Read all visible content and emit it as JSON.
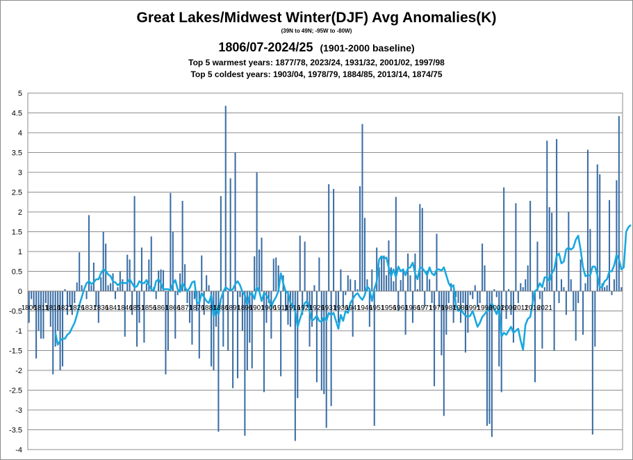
{
  "chart_data": {
    "type": "bar",
    "title": "Great Lakes/Midwest Winter(DJF) Avg Anomalies(K)",
    "subtitle": "(39N to 49N; -95W to -80W)",
    "period": "1806/07-2024/25",
    "baseline": "(1901-2000 baseline)",
    "warmest": "Top 5 warmest years: 1877/78,  2023/24,  1931/32,  2001/02,  1997/98",
    "coldest": "Top 5 coldest years: 1903/04,  1978/79,  1884/85,  2013/14,  1874/75",
    "xlabel": "",
    "ylabel": "",
    "ylim": [
      -4,
      5
    ],
    "yticks": [
      "5",
      "4.5",
      "4",
      "3.5",
      "3",
      "2.5",
      "2",
      "1.5",
      "1",
      "0.5",
      "0",
      "-0.5",
      "-1",
      "-1.5",
      "-2",
      "-2.5",
      "-3",
      "-3.5",
      "-4"
    ],
    "first_year": 1806,
    "xtick_labels": [
      "1806",
      "1811",
      "1816",
      "1821",
      "1826",
      "1831",
      "1836",
      "1841",
      "1846",
      "1851",
      "1856",
      "1861",
      "1866",
      "1871",
      "1876",
      "1881",
      "1886",
      "1891",
      "1896",
      "1901",
      "1906",
      "1911",
      "1916",
      "1921",
      "1926",
      "1931",
      "1936",
      "1941",
      "1946",
      "1951",
      "1956",
      "1961",
      "1966",
      "1971",
      "1976",
      "1981",
      "1986",
      "1991",
      "1996",
      "2001",
      "2006",
      "2011",
      "2016",
      "2021"
    ],
    "bar_color": "#3a6ea5",
    "line_color": "#19a8e0",
    "grid": true,
    "series": [
      {
        "kind": "bar",
        "values": [
          -0.8,
          -0.2,
          -0.4,
          -1.7,
          -1.0,
          -1.2,
          -1.2,
          -0.3,
          -0.5,
          -0.9,
          -2.1,
          -1.4,
          -1.0,
          -2.0,
          -1.9,
          0.05,
          -0.6,
          -0.4,
          -0.6,
          -0.3,
          0.22,
          0.98,
          0.15,
          0.05,
          -0.2,
          1.92,
          0.15,
          0.72,
          -0.4,
          -0.8,
          0.35,
          1.5,
          1.2,
          0.15,
          0.2,
          0.45,
          -0.2,
          0.1,
          0.5,
          0.3,
          -1.15,
          0.92,
          0.8,
          -0.6,
          2.4,
          -1.4,
          -0.8,
          1.1,
          -1.3,
          0.2,
          0.8,
          1.38,
          0.1,
          -0.2,
          0.52,
          0.55,
          0.53,
          -2.1,
          -1.5,
          2.48,
          1.5,
          -1.2,
          -0.1,
          0.45,
          2.28,
          0.68,
          -0.3,
          -0.8,
          -1.35,
          -0.2,
          -0.5,
          -1.7,
          0.9,
          -0.6,
          0.4,
          0.15,
          -1.9,
          -2.0,
          -0.9,
          -3.55,
          2.4,
          -1.4,
          4.68,
          -1.5,
          2.85,
          -2.45,
          3.5,
          -2.2,
          -0.15,
          -1.0,
          -3.65,
          -2.0,
          -1.3,
          -1.95,
          0.88,
          3.0,
          1.05,
          1.35,
          -2.55,
          -0.8,
          -0.3,
          -1.2,
          0.82,
          0.85,
          0.65,
          -2.15,
          0.4,
          -0.5,
          -0.85,
          -0.9,
          -0.4,
          -3.78,
          -2.7,
          1.4,
          -0.6,
          1.25,
          -0.4,
          -1.4,
          -0.9,
          0.15,
          -2.3,
          0.85,
          -2.5,
          -2.6,
          -3.45,
          2.7,
          -2.9,
          2.58,
          -0.5,
          -0.8,
          0.55,
          -0.4,
          -0.1,
          0.4,
          0.3,
          -1.15,
          0.28,
          0.05,
          2.65,
          4.22,
          1.85,
          0.3,
          -0.9,
          0.55,
          -3.4,
          1.1,
          0.6,
          0.85,
          0.9,
          0.4,
          1.28,
          0.6,
          0.25,
          2.38,
          -0.5,
          0.28,
          0.5,
          -1.1,
          0.95,
          0.4,
          -0.8,
          0.95,
          0.05,
          2.2,
          2.1,
          -0.4,
          0.52,
          0.3,
          -0.3,
          -2.4,
          1.45,
          -0.4,
          -1.62,
          -3.15,
          -1.1,
          -0.3,
          0.2,
          -0.8,
          -0.15,
          -0.3,
          -0.8,
          -0.3,
          -1.55,
          -1.05,
          -0.1,
          -0.2,
          0.15,
          -0.4,
          -0.3,
          1.2,
          0.65,
          -3.4,
          -3.35,
          -3.68,
          0.05,
          -0.15,
          -1.9,
          -2.55,
          2.62,
          -0.7,
          0.05,
          -0.6,
          -1.3,
          2.22,
          -0.3,
          0.2,
          0.1,
          0.3,
          0.65,
          2.28,
          -0.35,
          -2.3,
          1.25,
          -0.2,
          -1.45,
          0.1,
          3.8,
          2.12,
          1.98,
          -1.5,
          3.84,
          -0.3,
          0.3,
          0.1,
          -0.6,
          2.0,
          0.3,
          -0.5,
          -1.25,
          -0.3,
          0.8,
          -1.1,
          0.2,
          3.57,
          1.57,
          -3.62,
          -1.4,
          3.2,
          2.95,
          0.2,
          0.1,
          0.15,
          2.3,
          -0.1,
          0.3,
          2.8,
          4.42,
          0.1
        ]
      },
      {
        "kind": "line",
        "values": [
          null,
          null,
          null,
          null,
          null,
          null,
          null,
          null,
          null,
          null,
          null,
          -1.05,
          -1.35,
          -1.25,
          -1.2,
          -1.2,
          -1.1,
          -1.05,
          -0.92,
          -0.8,
          -0.6,
          -0.35,
          -0.15,
          0.05,
          0.2,
          0.25,
          0.18,
          0.22,
          0.3,
          0.3,
          0.45,
          0.55,
          0.52,
          0.42,
          0.38,
          0.25,
          0.22,
          0.15,
          0.2,
          0.22,
          0.2,
          0.22,
          0.3,
          0.2,
          0.1,
          0.12,
          0.25,
          0.2,
          0.2,
          0.28,
          0.15,
          0.05,
          0.0,
          0.25,
          0.3,
          0.2,
          0.05,
          0.05,
          0.05,
          0.02,
          0.18,
          0.28,
          0.05,
          -0.02,
          0.2,
          0.1,
          0.0,
          0.08,
          0.22,
          0.25,
          -0.28,
          -0.3,
          -0.05,
          -0.15,
          -0.25,
          -0.3,
          -0.1,
          -0.65,
          -0.4,
          -0.6,
          -0.2,
          -0.02,
          0.1,
          0.05,
          0.02,
          0.05,
          0.18,
          0.25,
          0.15,
          -0.02,
          -0.1,
          -0.35,
          -0.1,
          -0.05,
          -0.2,
          0.1,
          0.0,
          -0.25,
          -0.05,
          -0.1,
          -0.2,
          -0.4,
          -0.25,
          -0.15,
          0.0,
          0.45,
          0.2,
          0.0,
          -0.05,
          -0.3,
          -0.35,
          -0.5,
          -0.9,
          -0.7,
          -0.5,
          -0.3,
          -0.25,
          -0.5,
          -0.75,
          -0.7,
          -0.62,
          -0.75,
          -0.78,
          -0.65,
          -0.75,
          -0.55,
          -0.6,
          -0.55,
          -0.75,
          -0.95,
          -0.6,
          -0.75,
          -0.5,
          -0.55,
          -0.3,
          -0.2,
          -0.1,
          -0.05,
          -0.15,
          -0.22,
          -0.1,
          0.12,
          0.05,
          -0.25,
          0.05,
          0.25,
          0.8,
          0.88,
          0.82,
          0.85,
          0.6,
          0.38,
          0.55,
          0.35,
          0.62,
          0.5,
          0.55,
          0.4,
          0.58,
          0.6,
          0.72,
          0.45,
          0.3,
          0.6,
          0.58,
          0.5,
          0.4,
          0.6,
          0.45,
          0.4,
          0.55,
          0.55,
          0.52,
          0.6,
          0.4,
          0.2,
          0.1,
          0.15,
          -0.35,
          -0.5,
          -0.45,
          -0.55,
          -0.62,
          -0.65,
          -0.62,
          -0.5,
          -0.7,
          -0.9,
          -0.8,
          -0.65,
          -0.58,
          -0.5,
          -0.45,
          -0.3,
          -0.45,
          -0.58,
          -0.4,
          -1.15,
          -1.05,
          -1.1,
          -1.0,
          -0.9,
          -1.05,
          -1.0,
          -0.95,
          -1.25,
          -1.48,
          -0.85,
          -0.7,
          -0.65,
          -0.3,
          0.0,
          0.05,
          0.2,
          0.1,
          0.35,
          0.35,
          0.25,
          0.45,
          0.55,
          0.88,
          0.95,
          0.7,
          0.75,
          1.05,
          1.1,
          1.05,
          1.1,
          1.3,
          1.4,
          1.05,
          0.6,
          0.38,
          0.4,
          0.4,
          0.62,
          0.62,
          0.4,
          0.1,
          0.1,
          0.25,
          0.3,
          0.5,
          0.5,
          0.65,
          0.92,
          0.8,
          0.55,
          0.6,
          1.5,
          1.62,
          1.67
        ]
      }
    ]
  }
}
